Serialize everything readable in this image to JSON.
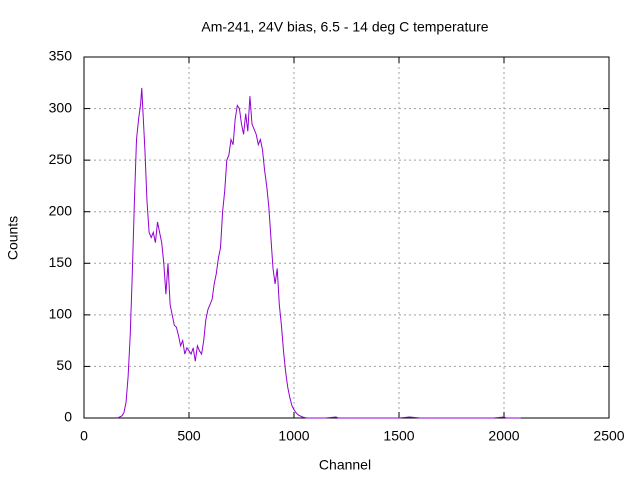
{
  "chart_data": {
    "type": "line",
    "title": "Am-241, 24V bias, 6.5 - 14 deg C temperature",
    "x_label": "Channel",
    "y_label": "Counts",
    "xlim": [
      0,
      2500
    ],
    "xticks": [
      0,
      500,
      1000,
      1500,
      2000,
      2500
    ],
    "ylim": [
      0,
      350
    ],
    "yticks": [
      0,
      50,
      100,
      150,
      200,
      250,
      300,
      350
    ],
    "grid": true,
    "series": [
      {
        "color": "#9400d3",
        "x": [
          160,
          180,
          190,
          200,
          210,
          220,
          230,
          240,
          250,
          260,
          270,
          275,
          280,
          290,
          300,
          310,
          320,
          330,
          340,
          350,
          360,
          370,
          380,
          390,
          400,
          410,
          420,
          430,
          440,
          450,
          460,
          470,
          480,
          490,
          500,
          510,
          520,
          530,
          540,
          550,
          560,
          570,
          580,
          590,
          600,
          610,
          620,
          630,
          640,
          650,
          660,
          670,
          680,
          690,
          700,
          710,
          720,
          730,
          740,
          750,
          760,
          770,
          780,
          790,
          800,
          810,
          820,
          830,
          840,
          850,
          860,
          870,
          880,
          890,
          900,
          910,
          920,
          930,
          940,
          950,
          960,
          970,
          980,
          990,
          1000,
          1010,
          1020,
          1040,
          1060,
          1100,
          1150,
          1200,
          1210,
          1300,
          1400,
          1500,
          1550,
          1600,
          1700,
          1800,
          1950,
          2000,
          2010,
          2080
        ],
        "values": [
          0,
          2,
          5,
          15,
          40,
          80,
          140,
          210,
          270,
          290,
          305,
          320,
          300,
          260,
          210,
          180,
          175,
          180,
          170,
          190,
          180,
          170,
          150,
          120,
          150,
          110,
          100,
          90,
          88,
          80,
          70,
          75,
          62,
          68,
          65,
          62,
          68,
          55,
          70,
          65,
          62,
          75,
          95,
          105,
          110,
          115,
          130,
          140,
          155,
          165,
          200,
          220,
          250,
          255,
          270,
          265,
          290,
          303,
          300,
          285,
          275,
          295,
          278,
          312,
          285,
          280,
          275,
          265,
          270,
          260,
          240,
          225,
          205,
          175,
          145,
          130,
          145,
          110,
          90,
          65,
          45,
          30,
          20,
          12,
          8,
          5,
          3,
          1,
          0,
          0,
          0,
          1,
          0,
          0,
          0,
          0,
          1,
          0,
          0,
          0,
          0,
          1,
          0,
          0
        ]
      }
    ]
  }
}
